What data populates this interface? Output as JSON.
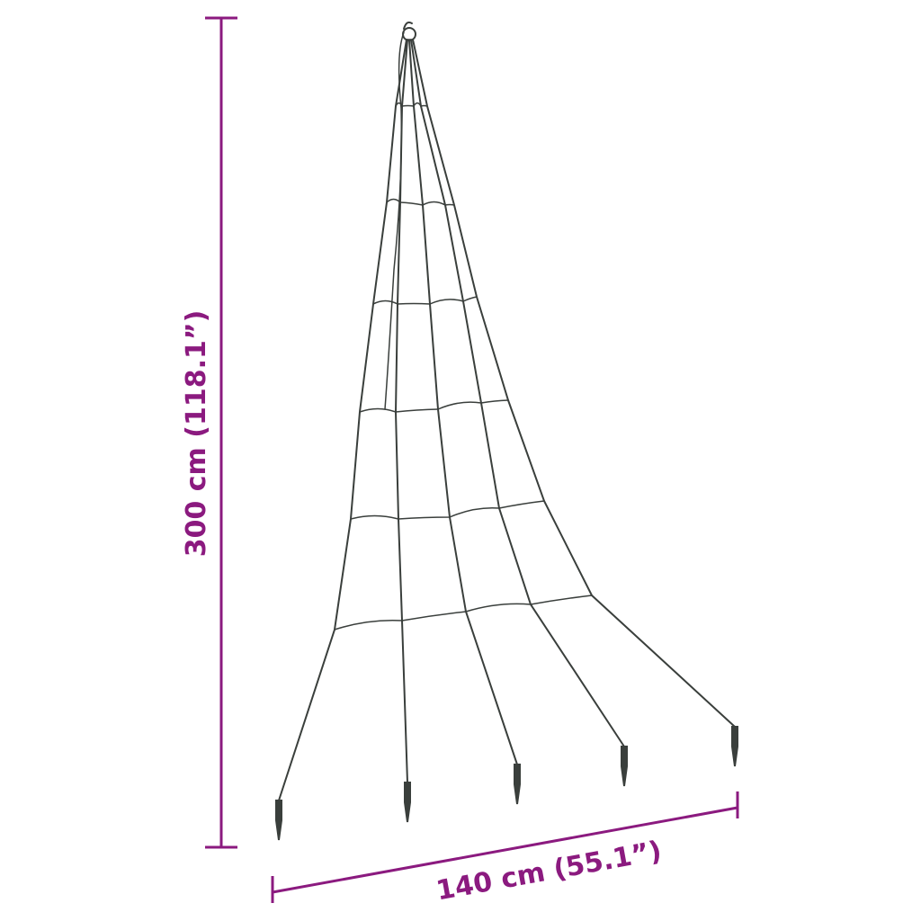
{
  "colors": {
    "dimension": "#8b1a7f",
    "product": "#3a3f3c",
    "background": "#ffffff"
  },
  "dimensions": {
    "height_label": "300 cm (118.1”)",
    "width_label": "140 cm (55.1”)"
  },
  "product": {
    "name_icon": "light-tree-frame-icon",
    "strands": 5,
    "rings": 6
  }
}
